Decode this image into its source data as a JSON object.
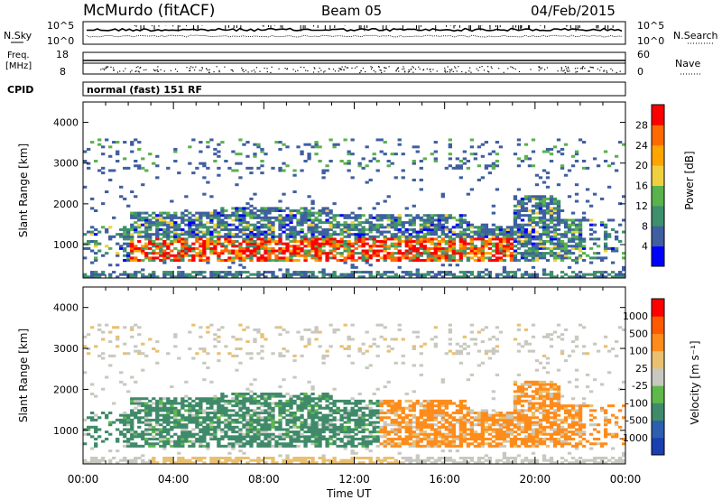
{
  "header": {
    "station": "McMurdo (fitACF)",
    "beam": "Beam 05",
    "date": "04/Feb/2015"
  },
  "noise_panel": {
    "left_label": "N.Sky",
    "right_label": "N.Search",
    "left_ticks": [
      "10^5",
      "10^0"
    ],
    "right_ticks": [
      "10^5",
      "10^0"
    ]
  },
  "freq_panel": {
    "left_label_line1": "Freq.",
    "left_label_line2": "[MHz]",
    "right_label": "Nave",
    "left_ticks": [
      "18",
      "8"
    ],
    "right_ticks": [
      "60",
      "0"
    ]
  },
  "cpid": {
    "label": "CPID",
    "mode": "normal (fast) 151 RF"
  },
  "chart_data": [
    {
      "type": "heatmap",
      "title": "",
      "xlabel": "",
      "ylabel": "Slant Range [km]",
      "yticks": [
        "1000",
        "2000",
        "3000",
        "4000"
      ],
      "ylim": [
        180,
        4500
      ],
      "colorbar_label": "Power [dB]",
      "colorbar_ticks": [
        "28",
        "24",
        "20",
        "16",
        "12",
        "8",
        "4"
      ],
      "colors": [
        "#0000ff",
        "#3f5fa0",
        "#3e8f6e",
        "#5ab24c",
        "#f0d040",
        "#ffa500",
        "#ff6a00",
        "#ff0000"
      ]
    },
    {
      "type": "heatmap",
      "title": "",
      "xlabel": "Time UT",
      "ylabel": "Slant Range [km]",
      "yticks": [
        "1000",
        "2000",
        "3000",
        "4000"
      ],
      "xticks": [
        "00:00",
        "04:00",
        "08:00",
        "12:00",
        "16:00",
        "20:00",
        "00:00"
      ],
      "xlim_hours": [
        0,
        24
      ],
      "ylim": [
        180,
        4500
      ],
      "colorbar_label": "Velocity [m s⁻¹]",
      "colorbar_ticks": [
        "1000",
        "500",
        "100",
        "25",
        "-25",
        "-100",
        "-500",
        "-1000"
      ],
      "colors": [
        "#1a3fb0",
        "#2c5fb0",
        "#3f8a6a",
        "#5fb84a",
        "#c8c8c0",
        "#e8c070",
        "#ff8c1a",
        "#ff5a00",
        "#ff0000"
      ]
    }
  ]
}
